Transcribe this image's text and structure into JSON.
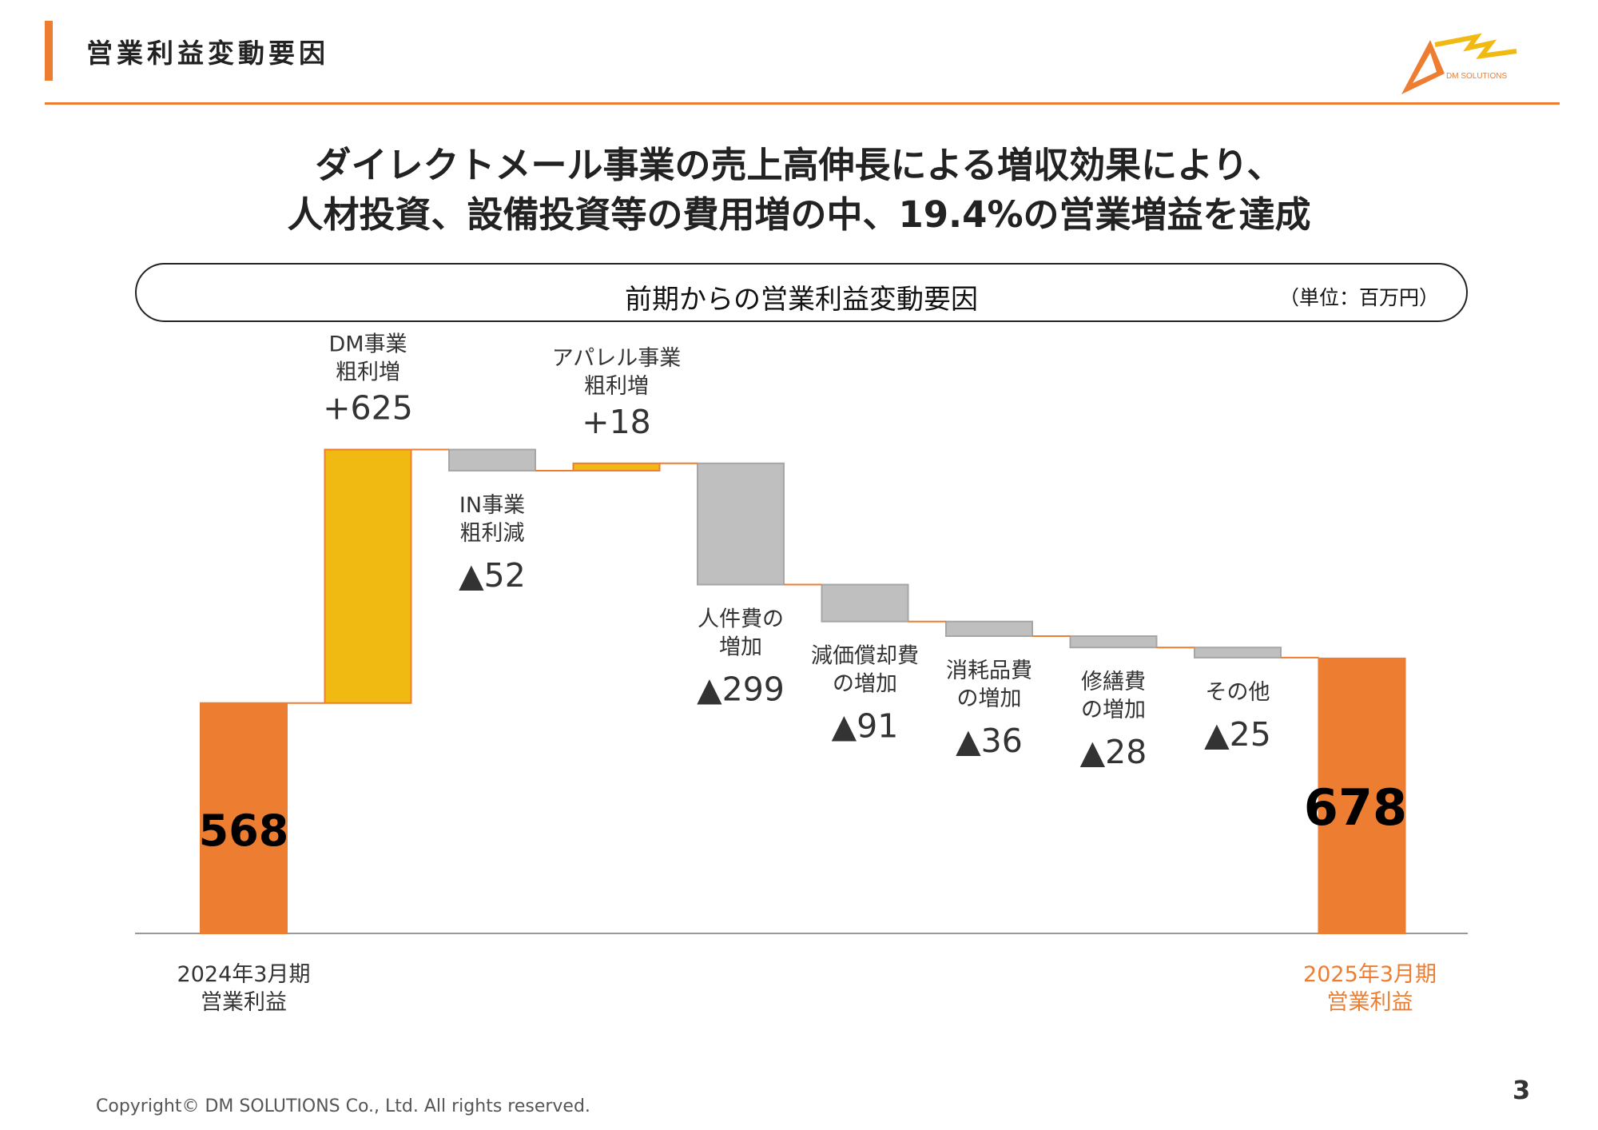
{
  "header": {
    "title": "営業利益変動要因",
    "logo_text": "DM SOLUTIONS"
  },
  "headline": {
    "line1": "ダイレクトメール事業の売上高伸長による増収効果により、",
    "line2": "人材投資、設備投資等の費用増の中、19.4%の営業増益を達成"
  },
  "panel": {
    "title": "前期からの営業利益変動要因",
    "unit": "（単位：百万円）"
  },
  "colors": {
    "accent": "#ED7D31",
    "increase": "#F0BA12",
    "decrease": "#BFBFBF",
    "total": "#ED7D31",
    "label_total_end": "#ED7D31"
  },
  "chart_data": {
    "type": "bar",
    "subtype": "waterfall",
    "ylim": [
      0,
      800
    ],
    "grid": false,
    "legend": "none",
    "steps": [
      {
        "label_lines": [
          "2024年3月期",
          "営業利益"
        ],
        "value": 568,
        "display": "568",
        "kind": "total"
      },
      {
        "label_lines": [
          "DM事業",
          "粗利増"
        ],
        "value": 625,
        "display": "+625",
        "kind": "increase"
      },
      {
        "label_lines": [
          "IN事業",
          "粗利減"
        ],
        "value": -52,
        "display": "▲52",
        "kind": "decrease"
      },
      {
        "label_lines": [
          "アパレル事業",
          "粗利増"
        ],
        "value": 18,
        "display": "+18",
        "kind": "increase"
      },
      {
        "label_lines": [
          "人件費の",
          "増加"
        ],
        "value": -299,
        "display": "▲299",
        "kind": "decrease"
      },
      {
        "label_lines": [
          "減価償却費",
          "の増加"
        ],
        "value": -91,
        "display": "▲91",
        "kind": "decrease"
      },
      {
        "label_lines": [
          "消耗品費",
          "の増加"
        ],
        "value": -36,
        "display": "▲36",
        "kind": "decrease"
      },
      {
        "label_lines": [
          "修繕費",
          "の増加"
        ],
        "value": -28,
        "display": "▲28",
        "kind": "decrease"
      },
      {
        "label_lines": [
          "その他"
        ],
        "value": -25,
        "display": "▲25",
        "kind": "decrease"
      },
      {
        "label_lines": [
          "2025年3月期",
          "営業利益"
        ],
        "value": 678,
        "display": "678",
        "kind": "total"
      }
    ]
  },
  "footer": {
    "copyright": "Copyright© DM SOLUTIONS Co., Ltd. All rights reserved.",
    "page": "3"
  }
}
